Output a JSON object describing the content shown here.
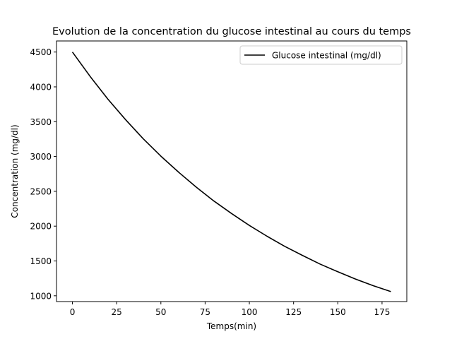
{
  "chart_data": {
    "type": "line",
    "title": "Evolution de la concentration du glucose intestinal au cours du temps",
    "xlabel": "Temps(min)",
    "ylabel": "Concentration (mg/dl)",
    "xlim": [
      -9,
      189
    ],
    "ylim": [
      917,
      4659
    ],
    "xticks": [
      0,
      25,
      50,
      75,
      100,
      125,
      150,
      175
    ],
    "yticks": [
      1000,
      1500,
      2000,
      2500,
      3000,
      3500,
      4000,
      4500
    ],
    "grid": false,
    "legend_position": "upper right",
    "series": [
      {
        "name": "Glucose intestinal (mg/dl)",
        "color": "#000000",
        "x": [
          0,
          10,
          20,
          30,
          40,
          50,
          60,
          70,
          80,
          90,
          100,
          110,
          120,
          130,
          140,
          150,
          160,
          170,
          180
        ],
        "y": [
          4500,
          4150,
          3825,
          3530,
          3255,
          3005,
          2775,
          2560,
          2360,
          2180,
          2010,
          1855,
          1710,
          1580,
          1455,
          1345,
          1240,
          1145,
          1060
        ]
      }
    ]
  }
}
